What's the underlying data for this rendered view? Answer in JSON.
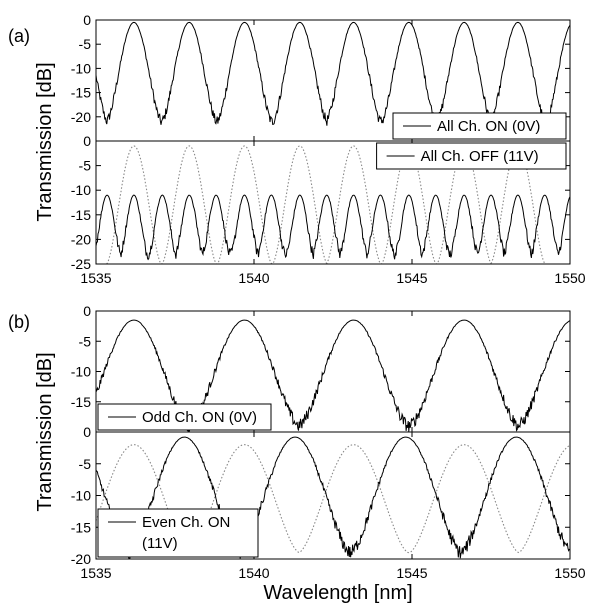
{
  "chart_data": [
    {
      "type": "line",
      "panel_label": "(a)",
      "ylabel": "Transmission [dB]",
      "xlim": [
        1535,
        1550
      ],
      "x_ticks": [
        1535,
        1540,
        1545,
        1550
      ],
      "x_tick_labels": [
        "1535",
        "1540",
        "1545",
        "1550"
      ],
      "subplots": [
        {
          "ylim": [
            -25,
            0
          ],
          "y_ticks": [
            0,
            -5,
            -10,
            -15,
            -20
          ],
          "y_tick_labels": [
            "0",
            "-5",
            "-10",
            "-15",
            "-20"
          ],
          "legend": {
            "label": "All Ch. ON (0V)",
            "position": "bottom-right"
          },
          "series": [
            {
              "style": "solid",
              "kind": "comb",
              "peaks": [
                1534.5,
                1536.2,
                1537.95,
                1539.7,
                1541.45,
                1543.15,
                1544.9,
                1546.65,
                1548.35,
                1550.1
              ],
              "peak_dB": -0.5,
              "notch_dB": -21
            }
          ]
        },
        {
          "ylim": [
            -25,
            0
          ],
          "y_ticks": [
            0,
            -5,
            -10,
            -15,
            -20,
            -25
          ],
          "y_tick_labels": [
            "0",
            "-5",
            "-10",
            "-15",
            "-20",
            "-25"
          ],
          "legend": {
            "label": "All Ch. OFF (11V)",
            "position": "top-right"
          },
          "series": [
            {
              "style": "dotted",
              "kind": "comb",
              "color": "#888888",
              "peaks": [
                1536.2,
                1537.95,
                1539.7,
                1541.45,
                1543.15,
                1544.9,
                1546.65,
                1548.35
              ],
              "peak_dB": -1,
              "notch_dB": -25
            },
            {
              "style": "solid",
              "kind": "comb",
              "peaks": [
                1535.35,
                1536.2,
                1537.1,
                1537.95,
                1538.8,
                1539.7,
                1540.55,
                1541.45,
                1542.3,
                1543.15,
                1544.0,
                1544.9,
                1545.75,
                1546.65,
                1547.5,
                1548.35,
                1549.2,
                1550.05
              ],
              "peak_dB": -11,
              "notch_dB": -23
            }
          ]
        }
      ]
    },
    {
      "type": "line",
      "panel_label": "(b)",
      "ylabel": "Transmission [dB]",
      "xlabel": "Wavelength [nm]",
      "xlim": [
        1535,
        1550
      ],
      "x_ticks": [
        1535,
        1540,
        1545,
        1550
      ],
      "x_tick_labels": [
        "1535",
        "1540",
        "1545",
        "1550"
      ],
      "subplots": [
        {
          "ylim": [
            -20,
            0
          ],
          "y_ticks": [
            0,
            -5,
            -10,
            -15
          ],
          "y_tick_labels": [
            "0",
            "-5",
            "-10",
            "-15"
          ],
          "legend": {
            "label": "Odd Ch. ON (0V)",
            "position": "bottom-left"
          },
          "series": [
            {
              "style": "solid",
              "kind": "comb",
              "peaks": [
                1536.2,
                1539.7,
                1543.15,
                1546.65,
                1550.1
              ],
              "peak_dB": -1.5,
              "notch_dB": -19
            }
          ]
        },
        {
          "ylim": [
            -20,
            0
          ],
          "y_ticks": [
            0,
            -5,
            -10,
            -15,
            -20
          ],
          "y_tick_labels": [
            "0",
            "-5",
            "-10",
            "-15",
            "-20"
          ],
          "legend": {
            "label": "Even Ch. ON",
            "label2": "(11V)",
            "position": "bottom-left"
          },
          "series": [
            {
              "style": "dotted",
              "kind": "comb",
              "color": "#888888",
              "peaks": [
                1536.2,
                1539.7,
                1543.15,
                1546.65,
                1550.1
              ],
              "peak_dB": -2,
              "notch_dB": -19
            },
            {
              "style": "solid",
              "kind": "comb",
              "peaks": [
                1534.3,
                1537.8,
                1541.3,
                1544.8,
                1548.3
              ],
              "peak_dB": -0.8,
              "notch_dB": -19
            }
          ]
        }
      ]
    }
  ]
}
